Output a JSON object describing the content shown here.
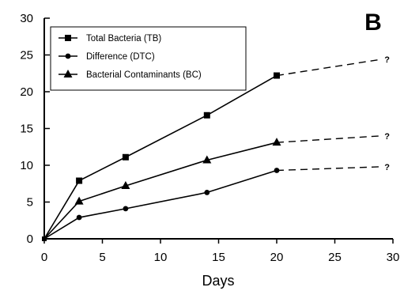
{
  "chart_data": {
    "type": "line",
    "panel_label": "B",
    "xlabel": "Days",
    "ylabel": "",
    "xlim": [
      0,
      30
    ],
    "ylim": [
      0,
      30
    ],
    "xticks": [
      0,
      5,
      10,
      15,
      20,
      25,
      30
    ],
    "yticks": [
      0,
      5,
      10,
      15,
      20,
      25,
      30
    ],
    "grid": false,
    "legend_position": "top-left",
    "series": [
      {
        "name": "Total Bacteria (TB)",
        "marker": "square",
        "x": [
          0,
          3,
          7,
          14,
          20
        ],
        "values": [
          0,
          7.9,
          11.1,
          16.8,
          22.2
        ],
        "projection": {
          "x": [
            20,
            29
          ],
          "values": [
            22.2,
            24.4
          ],
          "label": "?"
        }
      },
      {
        "name": "Difference (DTC)",
        "marker": "circle",
        "x": [
          0,
          3,
          7,
          14,
          20
        ],
        "values": [
          0,
          2.9,
          4.1,
          6.3,
          9.3
        ],
        "projection": {
          "x": [
            20,
            29
          ],
          "values": [
            9.3,
            9.8
          ],
          "label": "?"
        }
      },
      {
        "name": "Bacterial Contaminants (BC)",
        "marker": "triangle",
        "x": [
          0,
          3,
          7,
          14,
          20
        ],
        "values": [
          0,
          5.1,
          7.2,
          10.7,
          13.1
        ],
        "projection": {
          "x": [
            20,
            29
          ],
          "values": [
            13.1,
            14.0
          ],
          "label": "?"
        }
      }
    ]
  }
}
